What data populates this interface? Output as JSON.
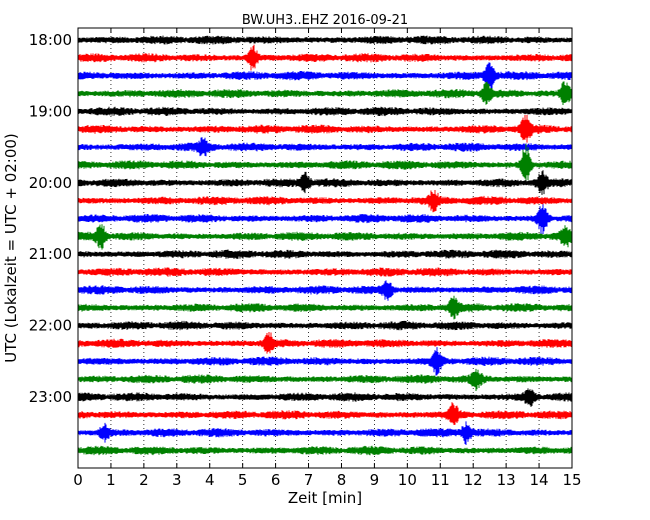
{
  "chart_data": {
    "type": "line",
    "title": "BW.UH3..EHZ 2016-09-21",
    "xlabel": "Zeit  [min]",
    "ylabel": "UTC (Lokalzeit = UTC + 02:00)",
    "xlim": [
      0,
      15
    ],
    "x_ticks": [
      "0",
      "1",
      "2",
      "3",
      "4",
      "5",
      "6",
      "7",
      "8",
      "9",
      "10",
      "11",
      "12",
      "13",
      "14",
      "15"
    ],
    "y_ticks": [
      "18:00",
      "19:00",
      "20:00",
      "21:00",
      "22:00",
      "23:00"
    ],
    "grid": "vertical dotted",
    "trace_colors": [
      "#000000",
      "#ff0000",
      "#0000ff",
      "#008000"
    ],
    "trace_start_times": [
      "18:00",
      "18:15",
      "18:30",
      "18:45",
      "19:00",
      "19:15",
      "19:30",
      "19:45",
      "20:00",
      "20:15",
      "20:30",
      "20:45",
      "21:00",
      "21:15",
      "21:30",
      "21:45",
      "22:00",
      "22:15",
      "22:30",
      "22:45",
      "23:00",
      "23:15",
      "23:30",
      "23:45"
    ],
    "events": [
      {
        "trace": 1,
        "minute": 5.3,
        "amp": 0.8
      },
      {
        "trace": 2,
        "minute": 12.5,
        "amp": 1.0
      },
      {
        "trace": 3,
        "minute": 12.4,
        "amp": 0.7
      },
      {
        "trace": 3,
        "minute": 14.8,
        "amp": 0.9
      },
      {
        "trace": 5,
        "minute": 13.6,
        "amp": 0.8
      },
      {
        "trace": 6,
        "minute": 3.8,
        "amp": 0.5
      },
      {
        "trace": 7,
        "minute": 13.6,
        "amp": 1.3
      },
      {
        "trace": 8,
        "minute": 6.9,
        "amp": 0.6
      },
      {
        "trace": 8,
        "minute": 14.1,
        "amp": 0.6
      },
      {
        "trace": 9,
        "minute": 10.8,
        "amp": 0.6
      },
      {
        "trace": 10,
        "minute": 14.1,
        "amp": 1.0
      },
      {
        "trace": 11,
        "minute": 0.7,
        "amp": 0.8
      },
      {
        "trace": 11,
        "minute": 14.8,
        "amp": 0.6
      },
      {
        "trace": 14,
        "minute": 9.4,
        "amp": 0.6
      },
      {
        "trace": 15,
        "minute": 11.4,
        "amp": 0.6
      },
      {
        "trace": 17,
        "minute": 5.8,
        "amp": 0.7
      },
      {
        "trace": 18,
        "minute": 10.9,
        "amp": 0.8
      },
      {
        "trace": 19,
        "minute": 12.1,
        "amp": 0.6
      },
      {
        "trace": 20,
        "minute": 13.7,
        "amp": 0.6
      },
      {
        "trace": 21,
        "minute": 11.4,
        "amp": 0.7
      },
      {
        "trace": 22,
        "minute": 0.8,
        "amp": 0.5
      },
      {
        "trace": 22,
        "minute": 11.8,
        "amp": 0.7
      }
    ]
  }
}
